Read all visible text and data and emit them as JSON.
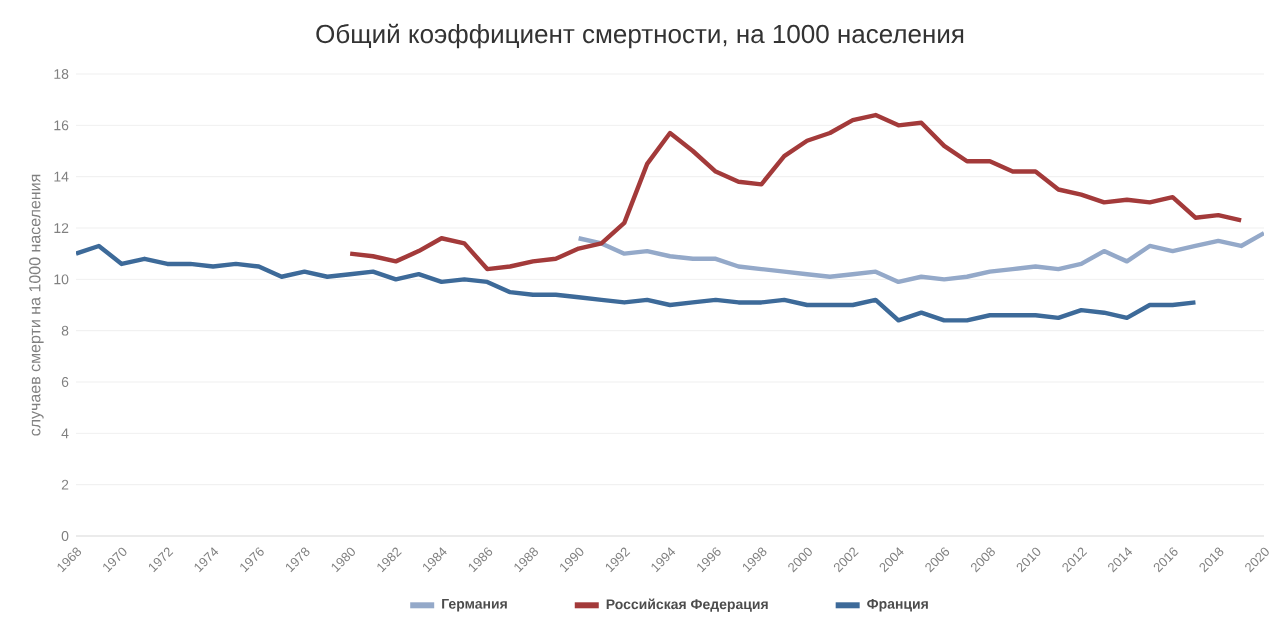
{
  "chart_data": {
    "type": "line",
    "title": "Общий коэффициент смертности, на 1000 населения",
    "ylabel": "случаев смерти на 1000 населения",
    "xlim": [
      1968,
      2020
    ],
    "xticks": [
      1968,
      1970,
      1972,
      1974,
      1976,
      1978,
      1980,
      1982,
      1984,
      1986,
      1988,
      1990,
      1992,
      1994,
      1996,
      1998,
      2000,
      2002,
      2004,
      2006,
      2008,
      2010,
      2012,
      2014,
      2016,
      2018,
      2020
    ],
    "ylim": [
      0,
      18
    ],
    "yticks": [
      0,
      2,
      4,
      6,
      8,
      10,
      12,
      14,
      16,
      18
    ],
    "grid": "y",
    "legend": "bottom",
    "marker": "none",
    "line_style": "solid",
    "series": [
      {
        "name": "Германия",
        "color": "#94a9c9",
        "x": [
          1990,
          1991,
          1992,
          1993,
          1994,
          1995,
          1996,
          1997,
          1998,
          1999,
          2000,
          2001,
          2002,
          2003,
          2004,
          2005,
          2006,
          2007,
          2008,
          2009,
          2010,
          2011,
          2012,
          2013,
          2014,
          2015,
          2016,
          2017,
          2018,
          2019,
          2020
        ],
        "values": [
          11.6,
          11.4,
          11.0,
          11.1,
          10.9,
          10.8,
          10.8,
          10.5,
          10.4,
          10.3,
          10.2,
          10.1,
          10.2,
          10.3,
          9.9,
          10.1,
          10.0,
          10.1,
          10.3,
          10.4,
          10.5,
          10.4,
          10.6,
          11.1,
          10.7,
          11.3,
          11.1,
          11.3,
          11.5,
          11.3,
          11.8
        ]
      },
      {
        "name": "Российская Федерация",
        "color": "#a33a3a",
        "x": [
          1980,
          1981,
          1982,
          1983,
          1984,
          1985,
          1986,
          1987,
          1988,
          1989,
          1990,
          1991,
          1992,
          1993,
          1994,
          1995,
          1996,
          1997,
          1998,
          1999,
          2000,
          2001,
          2002,
          2003,
          2004,
          2005,
          2006,
          2007,
          2008,
          2009,
          2010,
          2011,
          2012,
          2013,
          2014,
          2015,
          2016,
          2017,
          2018,
          2019
        ],
        "values": [
          11.0,
          10.9,
          10.7,
          11.1,
          11.6,
          11.4,
          10.4,
          10.5,
          10.7,
          10.8,
          11.2,
          11.4,
          12.2,
          14.5,
          15.7,
          15.0,
          14.2,
          13.8,
          13.7,
          14.8,
          15.4,
          15.7,
          16.2,
          16.4,
          16.0,
          16.1,
          15.2,
          14.6,
          14.6,
          14.2,
          14.2,
          13.5,
          13.3,
          13.0,
          13.1,
          13.0,
          13.2,
          12.4,
          12.5,
          12.3
        ]
      },
      {
        "name": "Франция",
        "color": "#3d6a99",
        "x": [
          1968,
          1969,
          1970,
          1971,
          1972,
          1973,
          1974,
          1975,
          1976,
          1977,
          1978,
          1979,
          1980,
          1981,
          1982,
          1983,
          1984,
          1985,
          1986,
          1987,
          1988,
          1989,
          1990,
          1991,
          1992,
          1993,
          1994,
          1995,
          1996,
          1997,
          1998,
          1999,
          2000,
          2001,
          2002,
          2003,
          2004,
          2005,
          2006,
          2007,
          2008,
          2009,
          2010,
          2011,
          2012,
          2013,
          2014,
          2015,
          2016,
          2017
        ],
        "values": [
          11.0,
          11.3,
          10.6,
          10.8,
          10.6,
          10.6,
          10.5,
          10.6,
          10.5,
          10.1,
          10.3,
          10.1,
          10.2,
          10.3,
          10.0,
          10.2,
          9.9,
          10.0,
          9.9,
          9.5,
          9.4,
          9.4,
          9.3,
          9.2,
          9.1,
          9.2,
          9.0,
          9.1,
          9.2,
          9.1,
          9.1,
          9.2,
          9.0,
          9.0,
          9.0,
          9.2,
          8.4,
          8.7,
          8.4,
          8.4,
          8.6,
          8.6,
          8.6,
          8.5,
          8.8,
          8.7,
          8.5,
          9.0,
          9.0,
          9.1
        ]
      }
    ]
  }
}
